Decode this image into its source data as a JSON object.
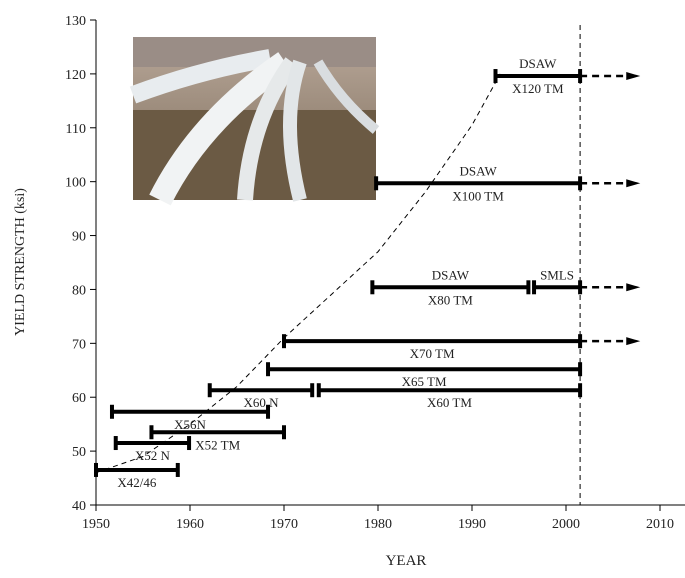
{
  "chart_data": {
    "type": "range",
    "x_label": "YEAR",
    "y_label": "YIELD STRENGTH (ksi)",
    "xlim": [
      1950,
      2010
    ],
    "xticks": [
      1950,
      1960,
      1970,
      1980,
      1990,
      2000,
      2010
    ],
    "ylim": [
      40,
      130
    ],
    "yticks": [
      40,
      50,
      60,
      70,
      80,
      90,
      100,
      110,
      120,
      130
    ],
    "color": "#000000",
    "bars": [
      {
        "label": "X42/46",
        "start": 1950,
        "end": 1958.7,
        "y": 46.5
      },
      {
        "label": "X52 N",
        "start": 1952.1,
        "end": 1959.9,
        "y": 51.5
      },
      {
        "label": "X52 TM",
        "start": 1955.9,
        "end": 1970,
        "y": 53.5
      },
      {
        "label": "X56N",
        "start": 1951.7,
        "end": 1968.3,
        "y": 57.3
      },
      {
        "label": "X60 N",
        "start": 1962.1,
        "end": 1973,
        "y": 61.3
      },
      {
        "label": "X60 TM",
        "start": 1973.7,
        "end": 2001.5,
        "y": 61.3
      },
      {
        "label": "X65 TM",
        "start": 1968.3,
        "end": 2001.5,
        "y": 65.2
      },
      {
        "label": "X70 TM",
        "start": 1970,
        "end": 2001.5,
        "y": 70.4,
        "arrow_to": 2007.9
      },
      {
        "label": "X80 TM",
        "top_label": "DSAW",
        "start": 1979.4,
        "end": 1996,
        "y": 80.4
      },
      {
        "top_label": "SMLS",
        "start": 1996.6,
        "end": 2001.5,
        "y": 80.4,
        "arrow_to": 2007.9
      },
      {
        "label": "X100 TM",
        "top_label": "DSAW",
        "start": 1979.8,
        "end": 2001.5,
        "y": 99.7,
        "arrow_to": 2007.9
      },
      {
        "label": "X120 TM",
        "top_label": "DSAW",
        "start": 1992.5,
        "end": 2001.5,
        "y": 119.6,
        "arrow_to": 2007.9
      }
    ],
    "trend": {
      "x": [
        1950,
        1955,
        1960,
        1965,
        1970,
        1975,
        1980,
        1985,
        1990,
        1993
      ],
      "y": [
        46,
        49,
        55,
        62,
        71,
        79,
        87,
        98,
        110.5,
        120
      ]
    },
    "vline": 2001.5
  }
}
